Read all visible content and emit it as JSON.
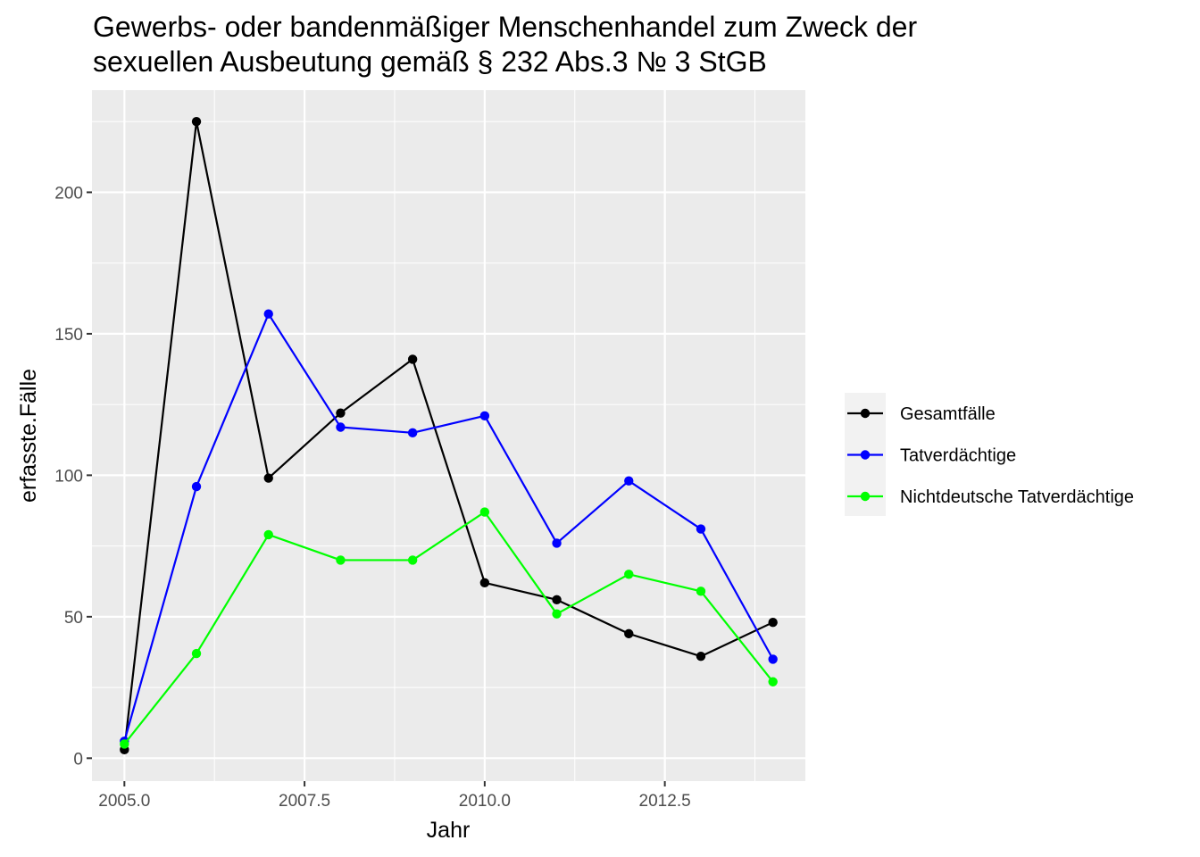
{
  "chart_data": {
    "type": "line",
    "title": "Gewerbs- oder bandenmäßiger Menschenhandel zum Zweck der",
    "subtitle": "sexuellen Ausbeutung gemäß § 232 Abs.3 № 3 StGB",
    "xlabel": "Jahr",
    "ylabel": "erfasste.Fälle",
    "x": [
      2005,
      2006,
      2007,
      2008,
      2009,
      2010,
      2011,
      2012,
      2013,
      2014
    ],
    "xlim": [
      2004.55,
      2014.45
    ],
    "ylim": [
      -8.1,
      236.1
    ],
    "x_ticks": [
      2005,
      2007.5,
      2010,
      2012.5
    ],
    "x_tick_labels": [
      "2005.0",
      "2007.5",
      "2010.0",
      "2012.5"
    ],
    "y_ticks": [
      0,
      50,
      100,
      150,
      200
    ],
    "y_tick_labels": [
      "0",
      "50",
      "100",
      "150",
      "200"
    ],
    "grid": true,
    "legend_position": "right",
    "series": [
      {
        "name": "Gesamtfälle",
        "color": "#000000",
        "values": [
          3,
          225,
          99,
          122,
          141,
          62,
          56,
          44,
          36,
          48
        ]
      },
      {
        "name": "Tatverdächtige",
        "color": "#0000ff",
        "values": [
          6,
          96,
          157,
          117,
          115,
          121,
          76,
          98,
          81,
          35
        ]
      },
      {
        "name": "Nichtdeutsche Tatverdächtige",
        "color": "#00ff00",
        "values": [
          5,
          37,
          79,
          70,
          70,
          87,
          51,
          65,
          59,
          27
        ]
      }
    ]
  }
}
